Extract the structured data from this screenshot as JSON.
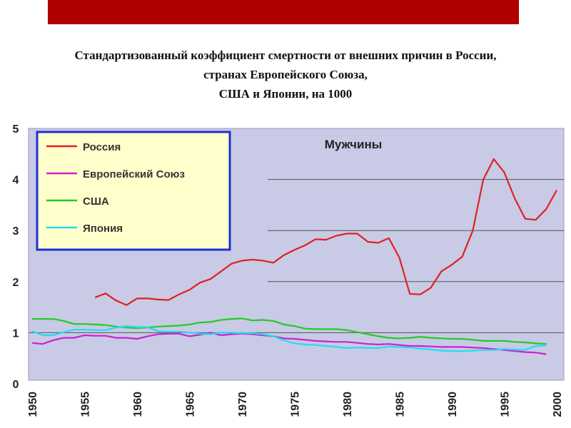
{
  "header": {
    "title_lines": [
      "Стандартизованный коэффициент смертности от внешних причин в России,",
      "странах Европейского Союза,",
      "США и Японии, на 1000"
    ]
  },
  "colors": {
    "banner": "#b00000",
    "plot_bg": "#c8cae6",
    "legend_bg": "#ffffcc",
    "legend_border": "#1f2fd0",
    "gridline": "#555555"
  },
  "chart_data": {
    "type": "line",
    "annotation": "Мужчины",
    "xlim": [
      1950,
      2000
    ],
    "ylim": [
      0,
      5
    ],
    "x_ticks": [
      "1950",
      "1955",
      "1960",
      "1965",
      "1970",
      "1975",
      "1980",
      "1985",
      "1990",
      "1995",
      "2000"
    ],
    "y_ticks": [
      "0",
      "1",
      "2",
      "3",
      "4",
      "5"
    ],
    "grid": "horizontal lines at 1–4",
    "legend_position": "top-left",
    "series": [
      {
        "name": "Россия",
        "color": "#e02020",
        "x": [
          1956,
          1957,
          1958,
          1959,
          1960,
          1961,
          1962,
          1963,
          1964,
          1965,
          1966,
          1967,
          1968,
          1969,
          1970,
          1971,
          1972,
          1973,
          1974,
          1975,
          1976,
          1977,
          1978,
          1979,
          1980,
          1981,
          1982,
          1983,
          1984,
          1985,
          1986,
          1987,
          1988,
          1989,
          1990,
          1991,
          1992,
          1993,
          1994,
          1995,
          1996,
          1997,
          1998,
          1999,
          2000
        ],
        "values": [
          1.69,
          1.77,
          1.63,
          1.54,
          1.67,
          1.67,
          1.65,
          1.64,
          1.75,
          1.84,
          1.98,
          2.05,
          2.2,
          2.35,
          2.41,
          2.43,
          2.41,
          2.37,
          2.52,
          2.62,
          2.71,
          2.83,
          2.82,
          2.9,
          2.94,
          2.94,
          2.78,
          2.76,
          2.85,
          2.47,
          1.76,
          1.75,
          1.88,
          2.2,
          2.33,
          2.49,
          3.0,
          4.0,
          4.4,
          4.14,
          3.63,
          3.23,
          3.21,
          3.42,
          3.79
        ]
      },
      {
        "name": "Европейский Союз",
        "color": "#cc22cc",
        "x": [
          1950,
          1951,
          1952,
          1953,
          1954,
          1955,
          1956,
          1957,
          1958,
          1959,
          1960,
          1961,
          1962,
          1963,
          1964,
          1965,
          1966,
          1967,
          1968,
          1969,
          1970,
          1971,
          1972,
          1973,
          1974,
          1975,
          1976,
          1977,
          1978,
          1979,
          1980,
          1981,
          1982,
          1983,
          1984,
          1985,
          1986,
          1987,
          1988,
          1989,
          1990,
          1991,
          1992,
          1993,
          1994,
          1995,
          1996,
          1997,
          1998,
          1999
        ],
        "values": [
          0.8,
          0.78,
          0.85,
          0.9,
          0.9,
          0.95,
          0.94,
          0.94,
          0.9,
          0.9,
          0.88,
          0.93,
          0.97,
          0.98,
          0.98,
          0.93,
          0.96,
          1.0,
          0.95,
          0.97,
          0.98,
          0.97,
          0.95,
          0.93,
          0.89,
          0.88,
          0.86,
          0.84,
          0.83,
          0.82,
          0.82,
          0.8,
          0.78,
          0.77,
          0.78,
          0.76,
          0.74,
          0.74,
          0.73,
          0.72,
          0.72,
          0.72,
          0.71,
          0.7,
          0.68,
          0.66,
          0.64,
          0.62,
          0.61,
          0.58
        ]
      },
      {
        "name": "США",
        "color": "#22cc22",
        "x": [
          1950,
          1951,
          1952,
          1953,
          1954,
          1955,
          1956,
          1957,
          1958,
          1959,
          1960,
          1961,
          1962,
          1963,
          1964,
          1965,
          1966,
          1967,
          1968,
          1969,
          1970,
          1971,
          1972,
          1973,
          1974,
          1975,
          1976,
          1977,
          1978,
          1979,
          1980,
          1981,
          1982,
          1983,
          1984,
          1985,
          1986,
          1987,
          1988,
          1989,
          1990,
          1991,
          1992,
          1993,
          1994,
          1995,
          1996,
          1997,
          1998,
          1999
        ],
        "values": [
          1.27,
          1.27,
          1.27,
          1.23,
          1.17,
          1.17,
          1.16,
          1.15,
          1.12,
          1.1,
          1.09,
          1.1,
          1.12,
          1.13,
          1.14,
          1.16,
          1.2,
          1.21,
          1.25,
          1.27,
          1.28,
          1.24,
          1.25,
          1.23,
          1.16,
          1.13,
          1.08,
          1.07,
          1.07,
          1.07,
          1.05,
          1.01,
          0.97,
          0.93,
          0.9,
          0.89,
          0.9,
          0.92,
          0.9,
          0.89,
          0.88,
          0.88,
          0.86,
          0.84,
          0.84,
          0.84,
          0.82,
          0.81,
          0.79,
          0.78
        ]
      },
      {
        "name": "Япония",
        "color": "#22ddee",
        "x": [
          1950,
          1951,
          1952,
          1953,
          1954,
          1955,
          1956,
          1957,
          1958,
          1959,
          1960,
          1961,
          1962,
          1963,
          1964,
          1965,
          1966,
          1967,
          1968,
          1969,
          1970,
          1971,
          1972,
          1973,
          1974,
          1975,
          1976,
          1977,
          1978,
          1979,
          1980,
          1981,
          1982,
          1983,
          1984,
          1985,
          1986,
          1987,
          1988,
          1989,
          1990,
          1991,
          1992,
          1993,
          1994,
          1995,
          1996,
          1997,
          1998,
          1999
        ],
        "values": [
          1.03,
          0.95,
          0.95,
          1.01,
          1.06,
          1.06,
          1.05,
          1.05,
          1.1,
          1.13,
          1.11,
          1.11,
          1.03,
          1.02,
          1.02,
          1.0,
          0.98,
          0.97,
          1.0,
          1.0,
          0.99,
          0.99,
          0.97,
          0.93,
          0.85,
          0.79,
          0.77,
          0.76,
          0.74,
          0.72,
          0.7,
          0.71,
          0.7,
          0.7,
          0.73,
          0.72,
          0.71,
          0.69,
          0.67,
          0.65,
          0.64,
          0.64,
          0.65,
          0.66,
          0.66,
          0.68,
          0.67,
          0.66,
          0.74,
          0.75
        ]
      }
    ]
  }
}
